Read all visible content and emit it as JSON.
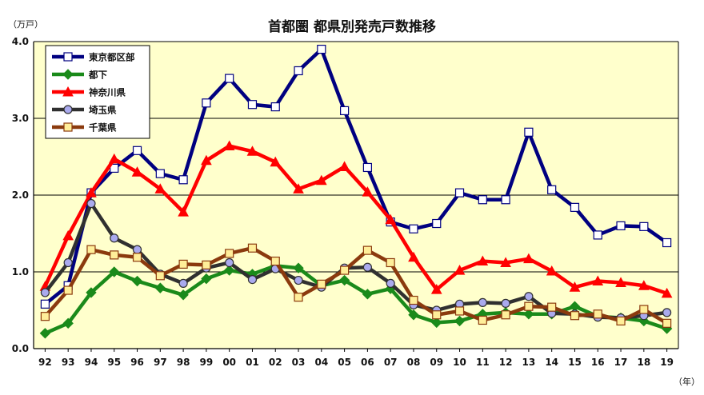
{
  "chart_data": {
    "type": "line",
    "title": "首都圏 都県別発売戸数推移",
    "y_unit": "（万戸）",
    "x_unit": "（年）",
    "ylim": [
      0,
      4
    ],
    "y_ticks": [
      "0.0",
      "1.0",
      "2.0",
      "3.0",
      "4.0"
    ],
    "grid": true,
    "legend_position": "top-left",
    "categories": [
      "92",
      "93",
      "94",
      "95",
      "96",
      "97",
      "98",
      "99",
      "00",
      "01",
      "02",
      "03",
      "04",
      "05",
      "06",
      "07",
      "08",
      "09",
      "10",
      "11",
      "12",
      "13",
      "14",
      "15",
      "16",
      "17",
      "18",
      "19"
    ],
    "series": [
      {
        "name": "東京都区部",
        "color": "#000080",
        "marker": "square",
        "marker_fill": "#ffffff",
        "values": [
          0.58,
          0.82,
          2.03,
          2.35,
          2.58,
          2.28,
          2.2,
          3.2,
          3.52,
          3.18,
          3.15,
          3.62,
          3.9,
          3.1,
          2.36,
          1.65,
          1.56,
          1.63,
          2.03,
          1.94,
          1.94,
          2.82,
          2.07,
          1.84,
          1.48,
          1.6,
          1.59,
          1.38
        ]
      },
      {
        "name": "都下",
        "color": "#1a8a1a",
        "marker": "diamond",
        "marker_fill": "#1a8a1a",
        "values": [
          0.2,
          0.33,
          0.73,
          1.0,
          0.88,
          0.79,
          0.7,
          0.91,
          1.02,
          0.97,
          1.08,
          1.05,
          0.82,
          0.89,
          0.71,
          0.78,
          0.44,
          0.34,
          0.36,
          0.45,
          0.47,
          0.45,
          0.45,
          0.55,
          0.42,
          0.4,
          0.36,
          0.26
        ]
      },
      {
        "name": "神奈川県",
        "color": "#ff0000",
        "marker": "triangle",
        "marker_fill": "#ff0000",
        "values": [
          0.81,
          1.47,
          2.03,
          2.47,
          2.3,
          2.08,
          1.78,
          2.45,
          2.64,
          2.57,
          2.43,
          2.08,
          2.19,
          2.37,
          2.04,
          1.68,
          1.19,
          0.77,
          1.02,
          1.14,
          1.12,
          1.17,
          1.01,
          0.8,
          0.88,
          0.86,
          0.82,
          0.72
        ]
      },
      {
        "name": "埼玉県",
        "color": "#303030",
        "marker": "circle",
        "marker_fill": "#aaaaee",
        "values": [
          0.73,
          1.12,
          1.89,
          1.44,
          1.29,
          0.97,
          0.85,
          1.05,
          1.12,
          0.9,
          1.04,
          0.89,
          0.8,
          1.05,
          1.06,
          0.85,
          0.57,
          0.5,
          0.58,
          0.6,
          0.59,
          0.68,
          0.46,
          0.45,
          0.41,
          0.4,
          0.43,
          0.47
        ]
      },
      {
        "name": "千葉県",
        "color": "#8b3a0e",
        "marker": "square",
        "marker_fill": "#ffee99",
        "values": [
          0.42,
          0.76,
          1.29,
          1.22,
          1.19,
          0.95,
          1.1,
          1.09,
          1.24,
          1.31,
          1.14,
          0.67,
          0.84,
          1.02,
          1.28,
          1.12,
          0.63,
          0.44,
          0.49,
          0.37,
          0.44,
          0.55,
          0.54,
          0.43,
          0.45,
          0.36,
          0.51,
          0.33
        ]
      }
    ]
  }
}
